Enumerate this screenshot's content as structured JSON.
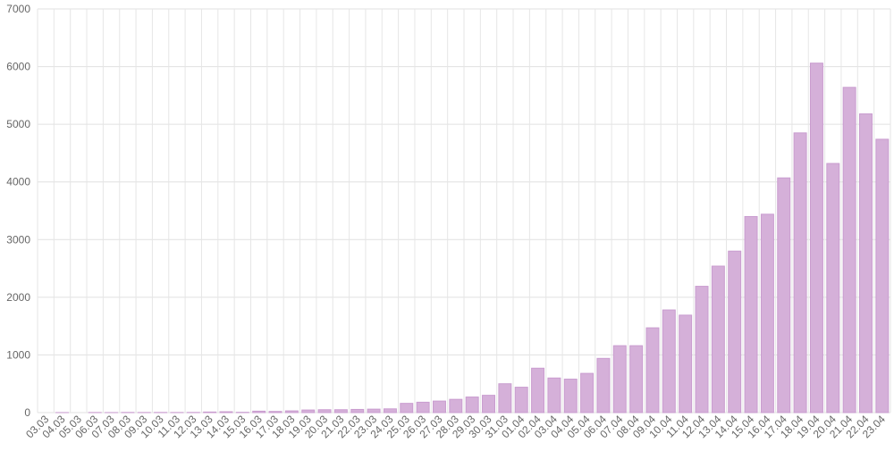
{
  "chart_data": {
    "type": "bar",
    "categories": [
      "03.03",
      "04.03",
      "05.03",
      "06.03",
      "07.03",
      "08.03",
      "09.03",
      "10.03",
      "11.03",
      "12.03",
      "13.03",
      "14.03",
      "15.03",
      "16.03",
      "17.03",
      "18.03",
      "19.03",
      "20.03",
      "21.03",
      "22.03",
      "23.03",
      "24.03",
      "25.03",
      "26.03",
      "27.03",
      "28.03",
      "29.03",
      "30.03",
      "31.03",
      "01.04",
      "02.04",
      "03.04",
      "04.04",
      "05.04",
      "06.04",
      "07.04",
      "08.04",
      "09.04",
      "10.04",
      "11.04",
      "12.04",
      "13.04",
      "14.04",
      "15.04",
      "16.04",
      "17.04",
      "18.04",
      "19.04",
      "20.04",
      "21.04",
      "22.04",
      "23.04"
    ],
    "values": [
      0,
      1,
      0,
      2,
      1,
      3,
      2,
      3,
      2,
      3,
      10,
      15,
      5,
      25,
      20,
      30,
      45,
      50,
      50,
      55,
      60,
      65,
      160,
      180,
      200,
      230,
      270,
      300,
      500,
      440,
      770,
      600,
      580,
      680,
      940,
      1160,
      1160,
      1470,
      1780,
      1690,
      2190,
      2540,
      2800,
      3400,
      3440,
      4070,
      4850,
      6060,
      4320,
      5640,
      5180,
      4740
    ],
    "color": "#d5b0d9",
    "ylim": [
      0,
      7000
    ],
    "yticks": [
      0,
      1000,
      2000,
      3000,
      4000,
      5000,
      6000,
      7000
    ],
    "grid": true
  }
}
